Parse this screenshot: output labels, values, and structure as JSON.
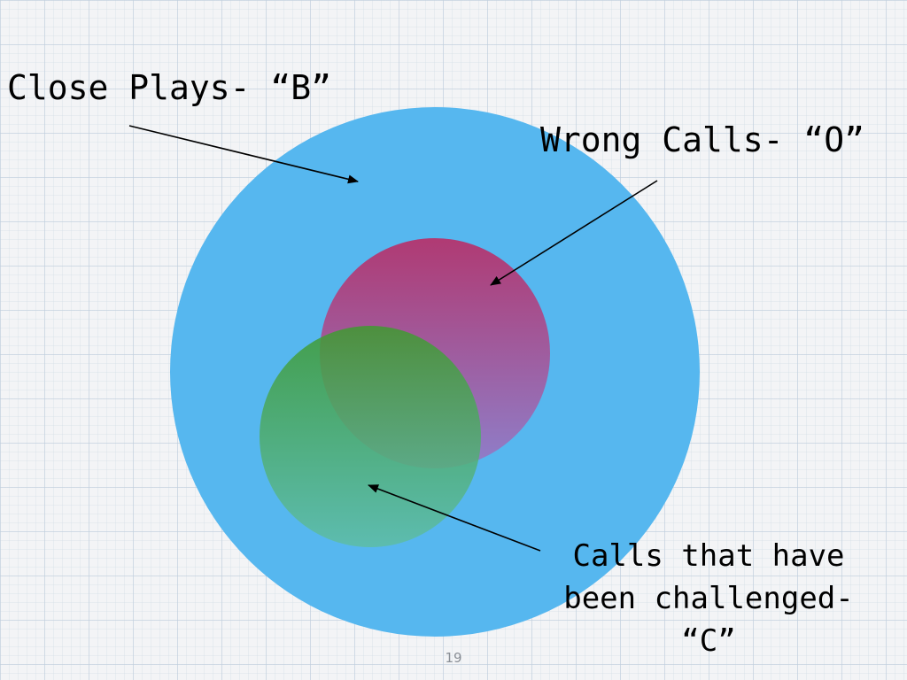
{
  "slide": {
    "page_number": "19"
  },
  "sets": {
    "close_plays": {
      "label": "Close Plays- “B”",
      "color": "#56b7ef"
    },
    "wrong_calls": {
      "label": "Wrong Calls- “O”",
      "color": "#a2457f"
    },
    "challenged_calls": {
      "label_lines": [
        "Calls that have",
        "been challenged-",
        "“C”"
      ],
      "color": "#46a84a"
    }
  },
  "arrow_color": "#000000"
}
